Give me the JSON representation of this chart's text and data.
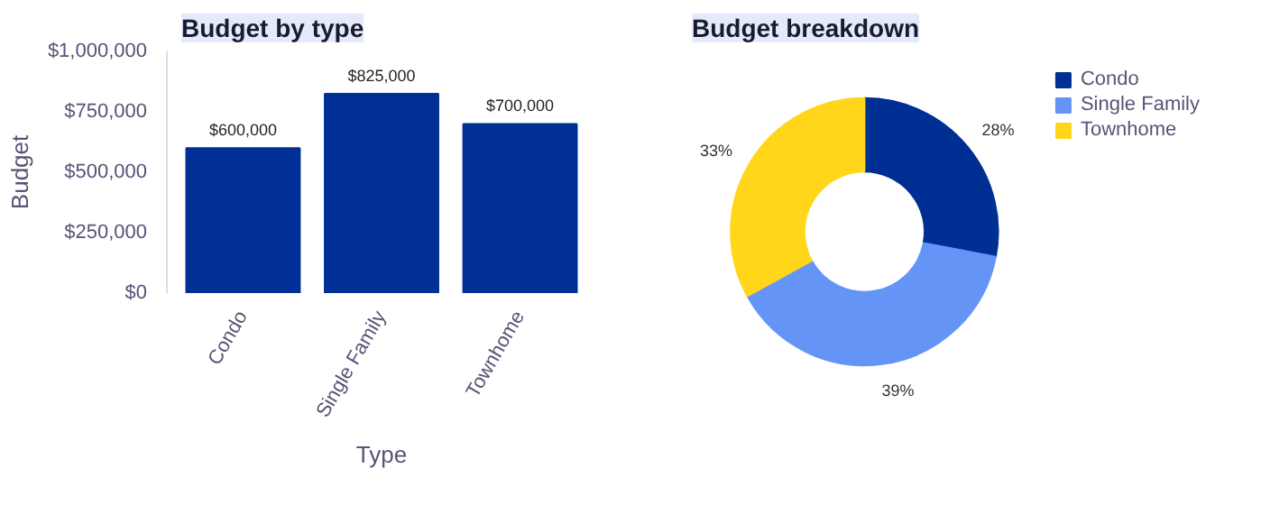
{
  "chart_data": [
    {
      "type": "bar",
      "title": "Budget by type",
      "xlabel": "Type",
      "ylabel": "Budget",
      "categories": [
        "Condo",
        "Single Family",
        "Townhome"
      ],
      "values": [
        600000,
        825000,
        700000
      ],
      "color": "#003096",
      "value_labels": [
        "$600,000",
        "$825,000",
        "$700,000"
      ],
      "ylim": [
        0,
        1000000
      ],
      "yticks": [
        {
          "value": 0,
          "label": "$0"
        },
        {
          "value": 250000,
          "label": "$250,000"
        },
        {
          "value": 500000,
          "label": "$500,000"
        },
        {
          "value": 750000,
          "label": "$750,000"
        },
        {
          "value": 1000000,
          "label": "$1,000,000"
        }
      ],
      "grid": false
    },
    {
      "type": "donut",
      "title": "Budget breakdown",
      "categories": [
        "Condo",
        "Single Family",
        "Townhome"
      ],
      "values": [
        28,
        39,
        33
      ],
      "colors": [
        "#002f93",
        "#6495f6",
        "#ffd619"
      ],
      "value_labels": [
        "28%",
        "39%",
        "33%"
      ],
      "legend": "top right"
    }
  ]
}
